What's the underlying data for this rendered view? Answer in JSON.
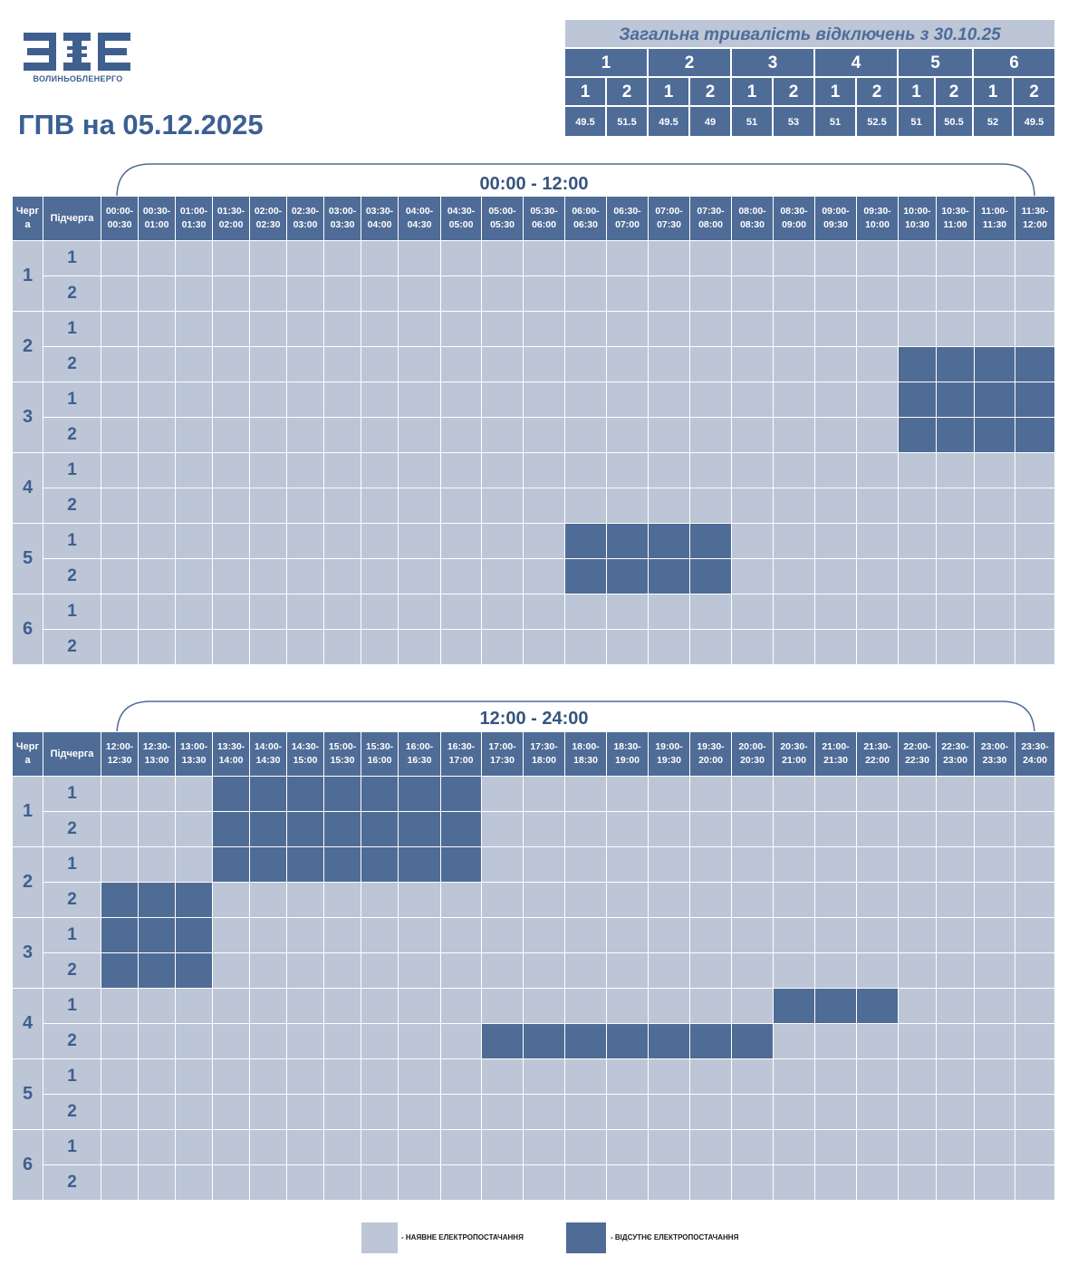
{
  "logo": {
    "text": "ВОЛИНЬОБЛЕНЕРГО"
  },
  "title": "ГПВ на 05.12.2025",
  "summary": {
    "title": "Загальна тривалість відключень з 30.10.25",
    "queues": [
      "1",
      "2",
      "3",
      "4",
      "5",
      "6"
    ],
    "subqueues": [
      "1",
      "2",
      "1",
      "2",
      "1",
      "2",
      "1",
      "2",
      "1",
      "2",
      "1",
      "2"
    ],
    "values": [
      "49.5",
      "51.5",
      "49.5",
      "49",
      "51",
      "53",
      "51",
      "52.5",
      "51",
      "50.5",
      "52",
      "49.5"
    ]
  },
  "headers": {
    "queue": "Черг а",
    "subqueue": "Підчерга"
  },
  "tables": [
    {
      "range": "00:00 - 12:00",
      "slots": [
        "00:00-\n00:30",
        "00:30-\n01:00",
        "01:00-\n01:30",
        "01:30-\n02:00",
        "02:00-\n02:30",
        "02:30-\n03:00",
        "03:00-\n03:30",
        "03:30-\n04:00",
        "04:00-\n04:30",
        "04:30-\n05:00",
        "05:00-\n05:30",
        "05:30-\n06:00",
        "06:00-\n06:30",
        "06:30-\n07:00",
        "07:00-\n07:30",
        "07:30-\n08:00",
        "08:00-\n08:30",
        "08:30-\n09:00",
        "09:00-\n09:30",
        "09:30-\n10:00",
        "10:00-\n10:30",
        "10:30-\n11:00",
        "11:00-\n11:30",
        "11:30-\n12:00"
      ],
      "rows": [
        {
          "queue": "1",
          "sub": "1",
          "off": []
        },
        {
          "queue": "1",
          "sub": "2",
          "off": []
        },
        {
          "queue": "2",
          "sub": "1",
          "off": []
        },
        {
          "queue": "2",
          "sub": "2",
          "off": [
            20,
            21,
            22,
            23
          ]
        },
        {
          "queue": "3",
          "sub": "1",
          "off": [
            20,
            21,
            22,
            23
          ]
        },
        {
          "queue": "3",
          "sub": "2",
          "off": [
            20,
            21,
            22,
            23
          ]
        },
        {
          "queue": "4",
          "sub": "1",
          "off": []
        },
        {
          "queue": "4",
          "sub": "2",
          "off": []
        },
        {
          "queue": "5",
          "sub": "1",
          "off": [
            12,
            13,
            14,
            15
          ]
        },
        {
          "queue": "5",
          "sub": "2",
          "off": [
            12,
            13,
            14,
            15
          ]
        },
        {
          "queue": "6",
          "sub": "1",
          "off": []
        },
        {
          "queue": "6",
          "sub": "2",
          "off": []
        }
      ]
    },
    {
      "range": "12:00 - 24:00",
      "slots": [
        "12:00-\n12:30",
        "12:30-\n13:00",
        "13:00-\n13:30",
        "13:30-\n14:00",
        "14:00-\n14:30",
        "14:30-\n15:00",
        "15:00-\n15:30",
        "15:30-\n16:00",
        "16:00-\n16:30",
        "16:30-\n17:00",
        "17:00-\n17:30",
        "17:30-\n18:00",
        "18:00-\n18:30",
        "18:30-\n19:00",
        "19:00-\n19:30",
        "19:30-\n20:00",
        "20:00-\n20:30",
        "20:30-\n21:00",
        "21:00-\n21:30",
        "21:30-\n22:00",
        "22:00-\n22:30",
        "22:30-\n23:00",
        "23:00-\n23:30",
        "23:30-\n24:00"
      ],
      "rows": [
        {
          "queue": "1",
          "sub": "1",
          "off": [
            3,
            4,
            5,
            6,
            7,
            8,
            9
          ]
        },
        {
          "queue": "1",
          "sub": "2",
          "off": [
            3,
            4,
            5,
            6,
            7,
            8,
            9
          ]
        },
        {
          "queue": "2",
          "sub": "1",
          "off": [
            3,
            4,
            5,
            6,
            7,
            8,
            9
          ]
        },
        {
          "queue": "2",
          "sub": "2",
          "off": [
            0,
            1,
            2
          ]
        },
        {
          "queue": "3",
          "sub": "1",
          "off": [
            0,
            1,
            2
          ]
        },
        {
          "queue": "3",
          "sub": "2",
          "off": [
            0,
            1,
            2
          ]
        },
        {
          "queue": "4",
          "sub": "1",
          "off": [
            17,
            18,
            19
          ]
        },
        {
          "queue": "4",
          "sub": "2",
          "off": [
            10,
            11,
            12,
            13,
            14,
            15,
            16
          ]
        },
        {
          "queue": "5",
          "sub": "1",
          "off": []
        },
        {
          "queue": "5",
          "sub": "2",
          "off": []
        },
        {
          "queue": "6",
          "sub": "1",
          "off": []
        },
        {
          "queue": "6",
          "sub": "2",
          "off": []
        }
      ]
    }
  ],
  "legend": {
    "available": "- НАЯВНЕ ЕЛЕКТРОПОСТАЧАННЯ",
    "absent": "- ВІДСУТНЄ ЕЛЕКТРОПОСТАЧАННЯ"
  },
  "colors": {
    "available": "#bcc6d6",
    "absent": "#4f6c97"
  }
}
